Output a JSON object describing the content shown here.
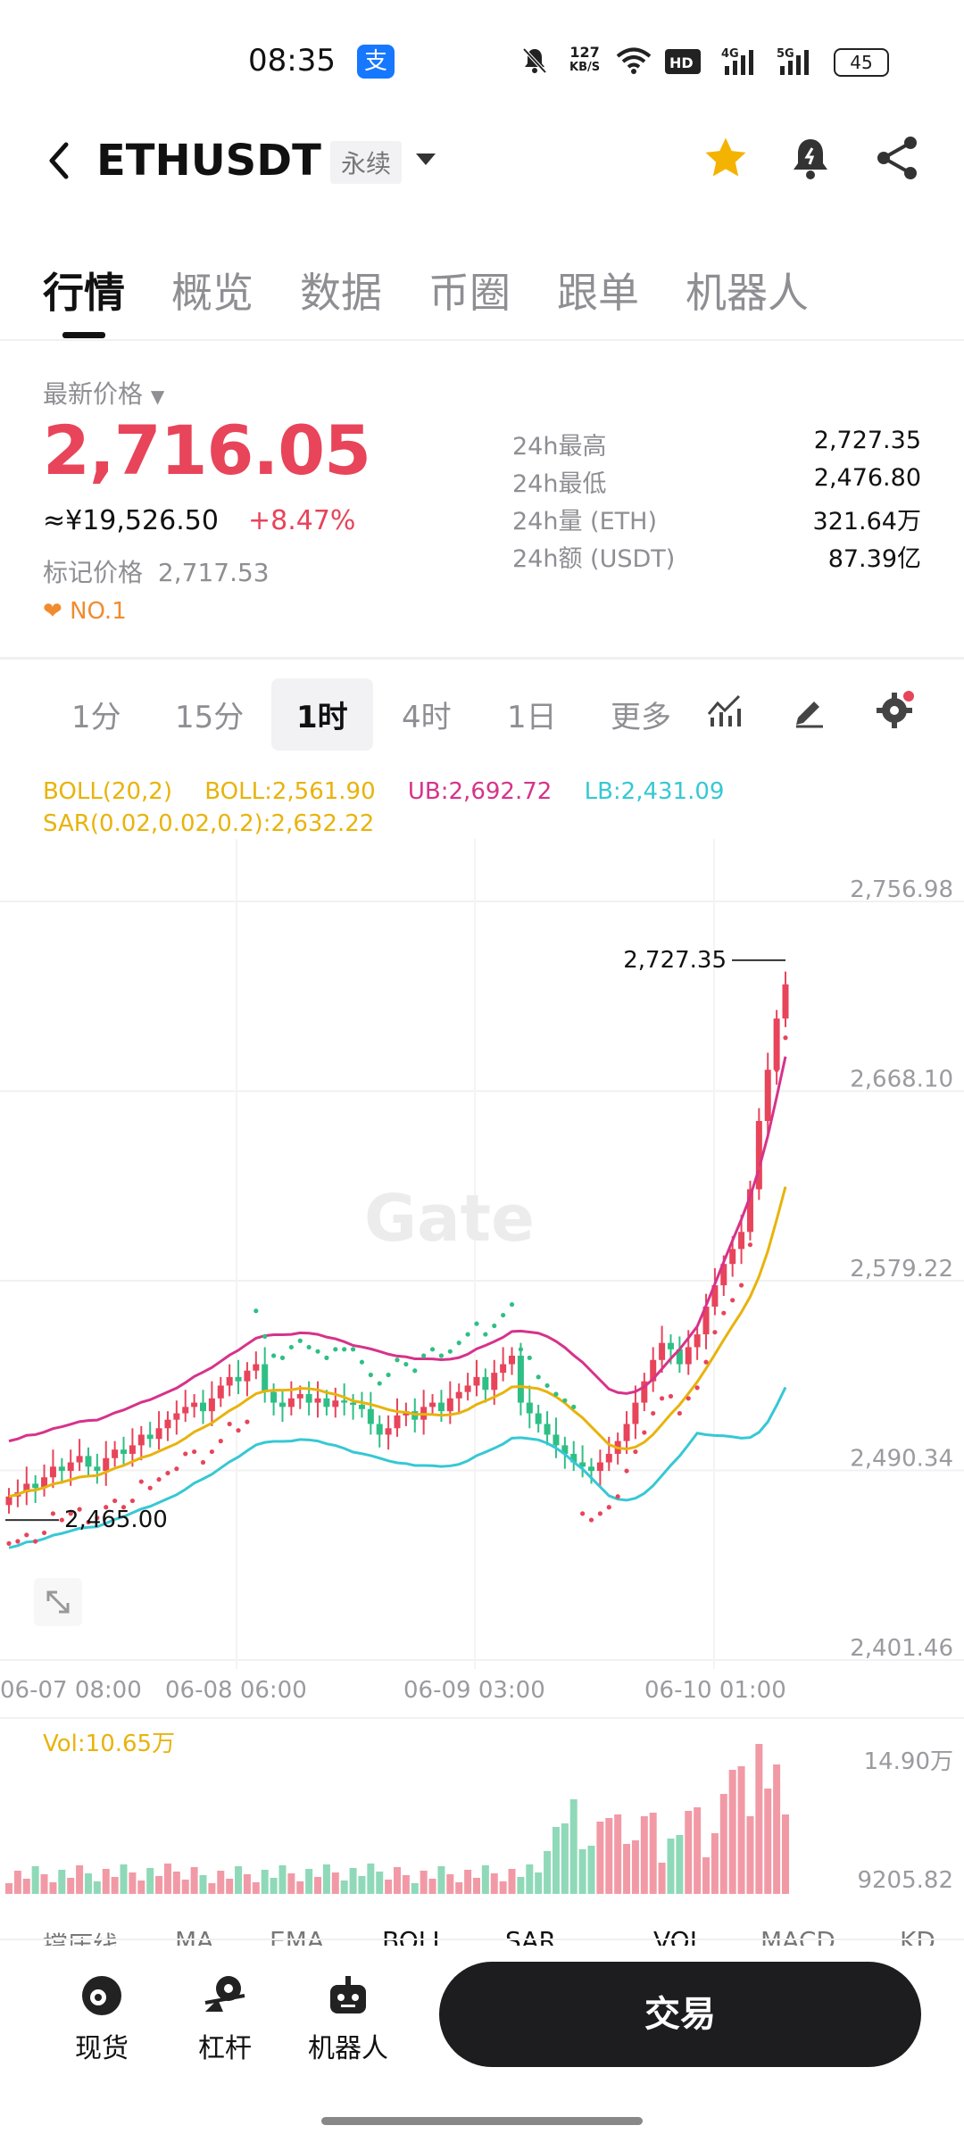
{
  "status_bar": {
    "time": "08:35",
    "app_icon": "支",
    "net_speed_value": "127",
    "net_speed_unit": "KB/S",
    "battery": "45",
    "icons": [
      "alipay-icon",
      "mute-icon",
      "wifi-icon",
      "hd-icon",
      "signal-4g-icon",
      "signal-5g-icon",
      "battery-icon"
    ]
  },
  "header": {
    "pair": "ETHUSDT",
    "contract_type": "永续",
    "icons": [
      "back-icon",
      "star-icon",
      "bell-icon",
      "share-icon"
    ],
    "accent_star": "#f5b301"
  },
  "tabs": [
    "行情",
    "概览",
    "数据",
    "币圈",
    "跟单",
    "机器人"
  ],
  "price_panel": {
    "latest_label": "最新价格",
    "latest_price": "2,716.05",
    "cny_equiv": "≈¥19,526.50",
    "change": "+8.47%",
    "mark_label": "标记价格",
    "mark_price": "2,717.53",
    "rank": "NO.1",
    "up_color": "#e8445a",
    "stats": [
      {
        "label": "24h最高",
        "value": "2,727.35"
      },
      {
        "label": "24h最低",
        "value": "2,476.80"
      },
      {
        "label": "24h量 (ETH)",
        "value": "321.64万"
      },
      {
        "label": "24h额 (USDT)",
        "value": "87.39亿"
      }
    ]
  },
  "intervals": {
    "items": [
      "1分",
      "15分",
      "1时",
      "4时",
      "1日",
      "更多"
    ],
    "active": "1时"
  },
  "indicators": {
    "boll_params": "BOLL(20,2)",
    "boll_mid": "BOLL:2,561.90",
    "boll_ub": "UB:2,692.72",
    "boll_lb": "LB:2,431.09",
    "sar": "SAR(0.02,0.02,0.2):2,632.22",
    "vol": "Vol:10.65万",
    "colors": {
      "boll": "#e8b30c",
      "ub": "#d6338a",
      "lb": "#36c8d4",
      "sar": "#e8445a"
    }
  },
  "chart_data": {
    "type": "candlestick",
    "y_ticks": [
      "2,756.98",
      "2,668.10",
      "2,579.22",
      "2,490.34",
      "2,401.46"
    ],
    "x_ticks": [
      "06-07 08:00",
      "06-08 06:00",
      "06-09 03:00",
      "06-10 01:00"
    ],
    "high_label": "2,727.35",
    "low_label": "2,465.00",
    "vol_ticks": [
      "14.90万",
      "9205.82"
    ],
    "watermark": "Gate"
  },
  "bottom_indicator_tabs": [
    "撑压线",
    "MA",
    "EMA",
    "BOLL",
    "SAR",
    "VOL",
    "MACD",
    "KD"
  ],
  "bottom_nav": {
    "items": [
      {
        "label": "现货",
        "icon": "spot-icon"
      },
      {
        "label": "杠杆",
        "icon": "leverage-icon"
      },
      {
        "label": "机器人",
        "icon": "robot-icon"
      }
    ],
    "trade_label": "交易"
  }
}
